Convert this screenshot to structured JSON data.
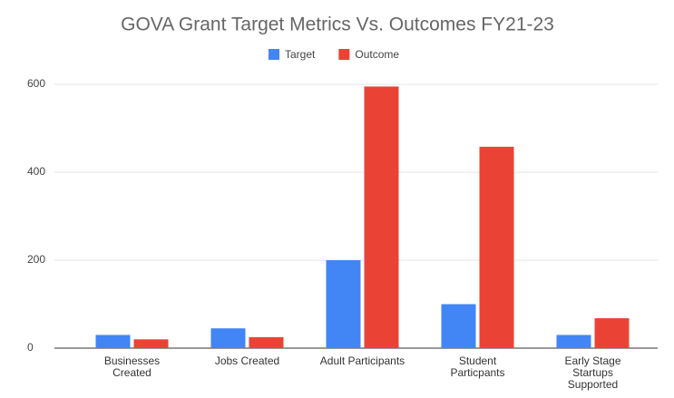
{
  "chart_data": {
    "type": "bar",
    "title": "GOVA Grant Target Metrics Vs. Outcomes FY21-23",
    "categories": [
      "Businesses\nCreated",
      "Jobs Created",
      "Adult Participants",
      "Student\nParticpants",
      "Early Stage\nStartups\nSupported"
    ],
    "series": [
      {
        "name": "Target",
        "color": "#4285f4",
        "values": [
          30,
          45,
          200,
          100,
          30
        ]
      },
      {
        "name": "Outcome",
        "color": "#ea4335",
        "values": [
          20,
          25,
          595,
          458,
          68
        ]
      }
    ],
    "ylim": [
      0,
      600
    ],
    "yticks": [
      0,
      200,
      400,
      600
    ],
    "grid": true,
    "legend": "top"
  }
}
